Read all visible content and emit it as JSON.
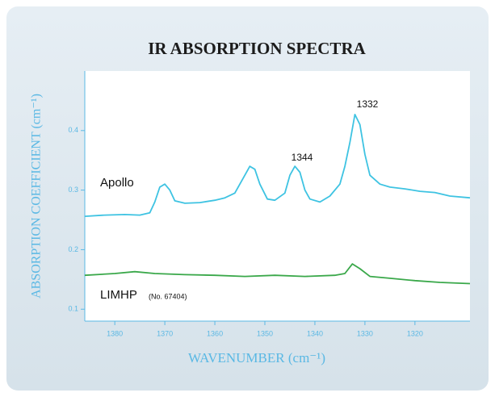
{
  "chart_data": {
    "type": "line",
    "title": "IR ABSORPTION SPECTRA",
    "xlabel": "WAVENUMBER (cm⁻¹)",
    "ylabel": "ABSORPTION COEFFICIENT (cm⁻¹)",
    "xlim": [
      1386,
      1309
    ],
    "xticks": [
      1380,
      1370,
      1360,
      1350,
      1340,
      1330,
      1320
    ],
    "ylim": [
      0.08,
      0.5
    ],
    "yticks": [
      0.1,
      0.2,
      0.3,
      0.4
    ],
    "series": [
      {
        "name": "Apollo",
        "color": "#3ec3e2",
        "x": [
          1386,
          1382,
          1378,
          1375,
          1373,
          1372,
          1371,
          1370,
          1369,
          1368,
          1366,
          1363,
          1360,
          1358,
          1356,
          1354,
          1353,
          1352,
          1351,
          1349.5,
          1348,
          1346,
          1345,
          1344,
          1343,
          1342,
          1341,
          1339,
          1337,
          1335,
          1334,
          1333,
          1332,
          1331,
          1330,
          1329,
          1327,
          1325,
          1322,
          1319,
          1316,
          1313,
          1309
        ],
        "values": [
          0.256,
          0.258,
          0.259,
          0.258,
          0.262,
          0.28,
          0.305,
          0.31,
          0.3,
          0.282,
          0.278,
          0.279,
          0.283,
          0.287,
          0.295,
          0.325,
          0.34,
          0.335,
          0.31,
          0.285,
          0.283,
          0.295,
          0.325,
          0.34,
          0.33,
          0.3,
          0.285,
          0.28,
          0.29,
          0.31,
          0.34,
          0.38,
          0.427,
          0.41,
          0.36,
          0.325,
          0.31,
          0.305,
          0.302,
          0.298,
          0.296,
          0.29,
          0.287
        ]
      },
      {
        "name": "LIMHP",
        "color": "#3aa84a",
        "x": [
          1386,
          1380,
          1376,
          1372,
          1366,
          1360,
          1354,
          1348,
          1342,
          1336,
          1334,
          1332.5,
          1331,
          1329,
          1325,
          1320,
          1315,
          1309
        ],
        "values": [
          0.157,
          0.16,
          0.163,
          0.16,
          0.158,
          0.157,
          0.155,
          0.157,
          0.155,
          0.157,
          0.16,
          0.176,
          0.168,
          0.155,
          0.152,
          0.148,
          0.145,
          0.143
        ]
      }
    ],
    "annotations": [
      "1344",
      "1332",
      "(No. 67404)"
    ]
  }
}
